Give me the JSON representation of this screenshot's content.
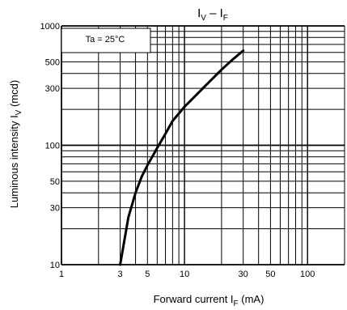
{
  "chart_data": {
    "type": "line",
    "title": {
      "main": "I",
      "v_sub": "V",
      "dash": " – I",
      "f_sub": "F"
    },
    "xlabel": {
      "text": "Forward current   I",
      "sub": "F",
      "unit": "  (mA)"
    },
    "ylabel": {
      "text": "Luminous intensity   I",
      "sub": "V",
      "unit": "   (mcd)"
    },
    "x_scale": "log",
    "y_scale": "log",
    "xlim": [
      1,
      200
    ],
    "ylim": [
      10,
      1000
    ],
    "x_ticks": [
      {
        "value": 1,
        "label": "1"
      },
      {
        "value": 3,
        "label": "3"
      },
      {
        "value": 5,
        "label": "5"
      },
      {
        "value": 10,
        "label": "10"
      },
      {
        "value": 30,
        "label": "30"
      },
      {
        "value": 50,
        "label": "50"
      },
      {
        "value": 100,
        "label": "100"
      }
    ],
    "y_ticks": [
      {
        "value": 10,
        "label": "10"
      },
      {
        "value": 30,
        "label": "30"
      },
      {
        "value": 50,
        "label": "50"
      },
      {
        "value": 100,
        "label": "100"
      },
      {
        "value": 300,
        "label": "300"
      },
      {
        "value": 500,
        "label": "500"
      },
      {
        "value": 1000,
        "label": "1000"
      }
    ],
    "grid": true,
    "annotation": "Ta = 25°C",
    "series": [
      {
        "x": [
          3,
          3.5,
          4,
          4.5,
          5,
          6,
          7,
          8,
          10,
          15,
          20,
          25,
          30
        ],
        "y": [
          10,
          25,
          40,
          55,
          68,
          95,
          125,
          160,
          210,
          320,
          430,
          530,
          620
        ]
      }
    ]
  }
}
